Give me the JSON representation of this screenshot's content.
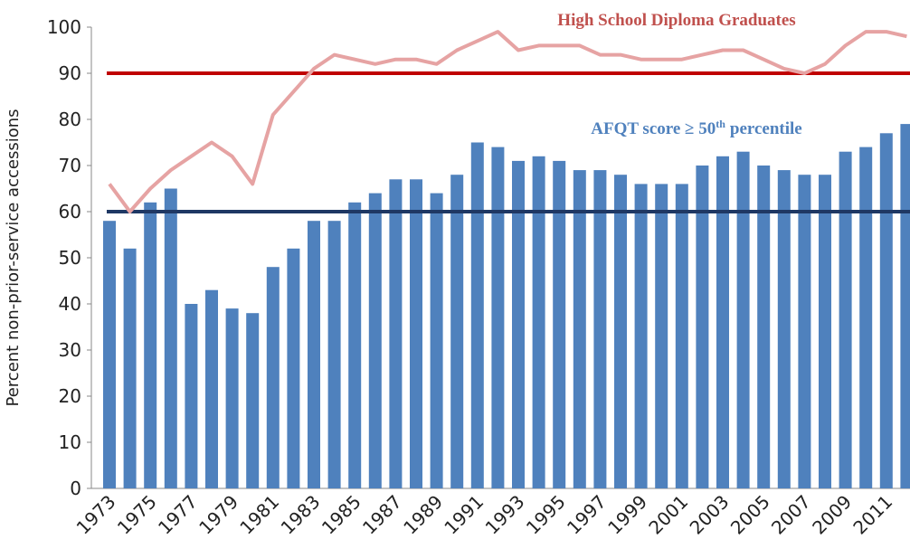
{
  "chart_data": {
    "type": "bar_line",
    "y_label": "Percent non-prior-service accessions",
    "categories": [
      "1973",
      null,
      "1975",
      null,
      "1977",
      null,
      "1979",
      null,
      "1981",
      null,
      "1983",
      null,
      "1985",
      null,
      "1987",
      null,
      "1989",
      null,
      "1991",
      null,
      "1993",
      null,
      "1995",
      null,
      "1997",
      null,
      "1999",
      null,
      "2001",
      null,
      "2003",
      null,
      "2005",
      null,
      "2007",
      null,
      "2009",
      null,
      "2011",
      null
    ],
    "series": [
      {
        "type": "bar",
        "color": "#4f81bd",
        "values": [
          58,
          52,
          62,
          65,
          40,
          43,
          39,
          38,
          48,
          52,
          58,
          58,
          62,
          64,
          67,
          67,
          64,
          68,
          75,
          74,
          71,
          72,
          71,
          69,
          69,
          68,
          66,
          66,
          66,
          70,
          72,
          73,
          70,
          69,
          68,
          68,
          73,
          74,
          77,
          79
        ]
      },
      {
        "type": "line",
        "color": "#e6a3a3",
        "values": [
          66,
          60,
          65,
          69,
          72,
          75,
          72,
          66,
          81,
          86,
          91,
          94,
          93,
          92,
          93,
          93,
          92,
          95,
          97,
          99,
          95,
          96,
          96,
          96,
          94,
          94,
          93,
          93,
          93,
          94,
          95,
          95,
          93,
          91,
          90,
          92,
          96,
          99,
          99,
          98
        ]
      }
    ],
    "reference_lines": [
      {
        "value": 90,
        "color": "#c00000"
      },
      {
        "value": 60,
        "color": "#1f3864"
      }
    ],
    "annotations": [
      {
        "text": "High School Diploma Graduates",
        "color": "#c0504d"
      },
      {
        "text": "AFQT score ≥ 50",
        "sup": "th",
        "after": "percentile",
        "color": "#4f81bd"
      }
    ],
    "ylim": [
      0,
      100
    ],
    "yticks": [
      0,
      10,
      20,
      30,
      40,
      50,
      60,
      70,
      80,
      90,
      100
    ]
  }
}
